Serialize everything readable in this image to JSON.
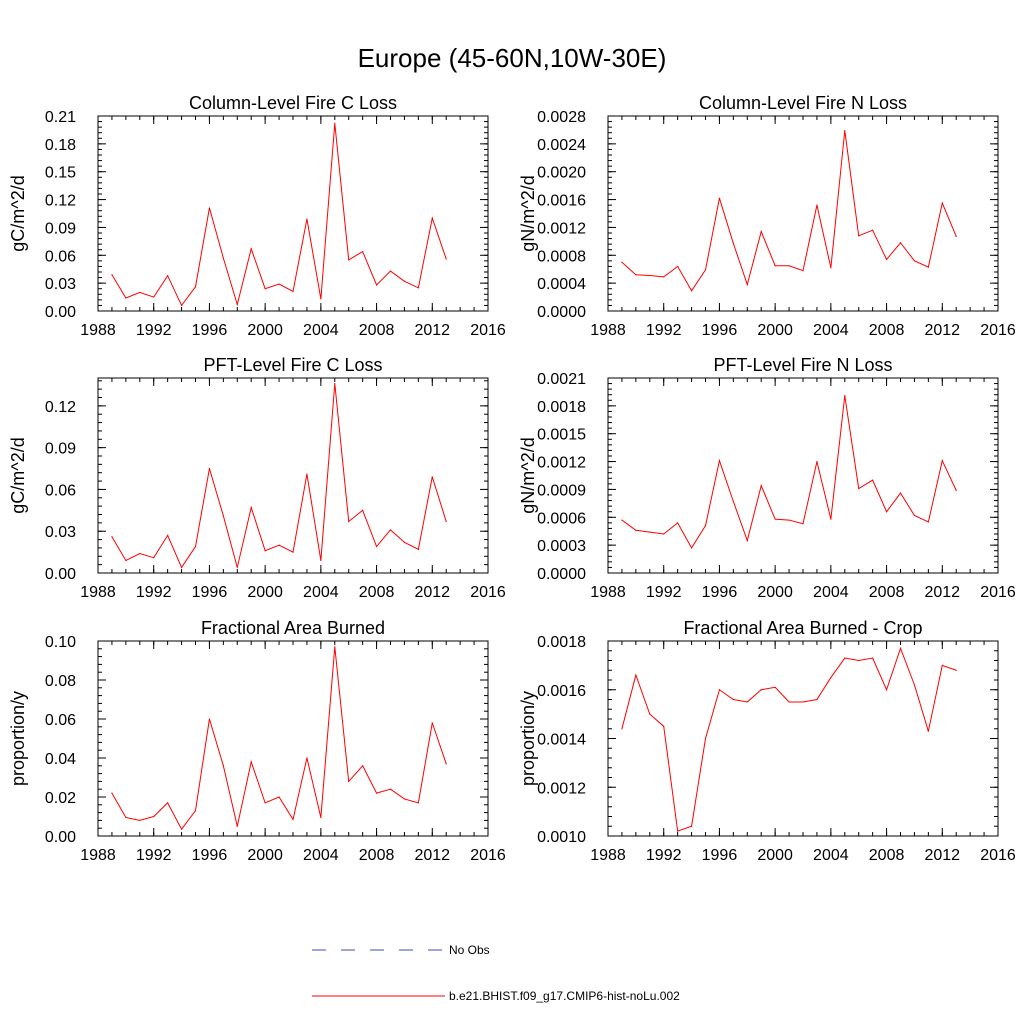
{
  "figure": {
    "title": "Europe (45-60N,10W-30E)"
  },
  "legend": {
    "obs_label": "No Obs",
    "model_label": "b.e21.BHIST.f09_g17.CMIP6-hist-noLu.002",
    "obs_color": "#3b4bb5",
    "model_color": "#ff0000"
  },
  "chart_data": [
    {
      "type": "line",
      "title": "Column-Level Fire C Loss",
      "xlabel": "",
      "ylabel": "gC/m^2/d",
      "xlim": [
        1988,
        2016
      ],
      "ylim": [
        0,
        0.21
      ],
      "xticks": [
        "1988",
        "1992",
        "1996",
        "2000",
        "2004",
        "2008",
        "2012",
        "2016"
      ],
      "yticks": [
        "0.00",
        "0.03",
        "0.06",
        "0.09",
        "0.12",
        "0.15",
        "0.18",
        "0.21"
      ],
      "series": [
        {
          "name": "b.e21.BHIST.f09_g17.CMIP6-hist-noLu.002",
          "color": "#ff0000",
          "x": [
            1989,
            1990,
            1991,
            1992,
            1993,
            1994,
            1995,
            1996,
            1997,
            1998,
            1999,
            2000,
            2001,
            2002,
            2003,
            2004,
            2005,
            2006,
            2007,
            2008,
            2009,
            2010,
            2011,
            2012,
            2013
          ],
          "y": [
            0.039,
            0.014,
            0.02,
            0.015,
            0.038,
            0.006,
            0.026,
            0.111,
            0.057,
            0.007,
            0.067,
            0.024,
            0.029,
            0.021,
            0.099,
            0.013,
            0.202,
            0.055,
            0.064,
            0.028,
            0.043,
            0.032,
            0.025,
            0.1,
            0.056
          ]
        }
      ]
    },
    {
      "type": "line",
      "title": "Column-Level Fire N Loss",
      "xlabel": "",
      "ylabel": "gN/m^2/d",
      "xlim": [
        1988,
        2016
      ],
      "ylim": [
        0,
        0.0028
      ],
      "xticks": [
        "1988",
        "1992",
        "1996",
        "2000",
        "2004",
        "2008",
        "2012",
        "2016"
      ],
      "yticks": [
        "0.0000",
        "0.0004",
        "0.0008",
        "0.0012",
        "0.0016",
        "0.0020",
        "0.0024",
        "0.0028"
      ],
      "series": [
        {
          "name": "b.e21.BHIST.f09_g17.CMIP6-hist-noLu.002",
          "color": "#ff0000",
          "x": [
            1989,
            1990,
            1991,
            1992,
            1993,
            1994,
            1995,
            1996,
            1997,
            1998,
            1999,
            2000,
            2001,
            2002,
            2003,
            2004,
            2005,
            2006,
            2007,
            2008,
            2009,
            2010,
            2011,
            2012,
            2013
          ],
          "y": [
            0.0007,
            0.00052,
            0.00051,
            0.00049,
            0.00064,
            0.00029,
            0.00059,
            0.00162,
            0.00097,
            0.00038,
            0.00114,
            0.00065,
            0.00065,
            0.00058,
            0.00152,
            0.00062,
            0.00259,
            0.00108,
            0.00116,
            0.00074,
            0.00098,
            0.00072,
            0.00063,
            0.00155,
            0.00107
          ]
        }
      ]
    },
    {
      "type": "line",
      "title": "PFT-Level Fire C Loss",
      "xlabel": "",
      "ylabel": "gC/m^2/d",
      "xlim": [
        1988,
        2016
      ],
      "ylim": [
        0,
        0.14
      ],
      "xticks": [
        "1988",
        "1992",
        "1996",
        "2000",
        "2004",
        "2008",
        "2012",
        "2016"
      ],
      "yticks": [
        "0.00",
        "0.03",
        "0.06",
        "0.09",
        "0.12"
      ],
      "series": [
        {
          "name": "b.e21.BHIST.f09_g17.CMIP6-hist-noLu.002",
          "color": "#ff0000",
          "x": [
            1989,
            1990,
            1991,
            1992,
            1993,
            1994,
            1995,
            1996,
            1997,
            1998,
            1999,
            2000,
            2001,
            2002,
            2003,
            2004,
            2005,
            2006,
            2007,
            2008,
            2009,
            2010,
            2011,
            2012,
            2013
          ],
          "y": [
            0.026,
            0.009,
            0.014,
            0.011,
            0.027,
            0.004,
            0.019,
            0.075,
            0.041,
            0.004,
            0.047,
            0.016,
            0.02,
            0.015,
            0.071,
            0.009,
            0.136,
            0.037,
            0.045,
            0.019,
            0.031,
            0.022,
            0.017,
            0.069,
            0.037
          ]
        }
      ]
    },
    {
      "type": "line",
      "title": "PFT-Level Fire N Loss",
      "xlabel": "",
      "ylabel": "gN/m^2/d",
      "xlim": [
        1988,
        2016
      ],
      "ylim": [
        0,
        0.0021
      ],
      "xticks": [
        "1988",
        "1992",
        "1996",
        "2000",
        "2004",
        "2008",
        "2012",
        "2016"
      ],
      "yticks": [
        "0.0000",
        "0.0003",
        "0.0006",
        "0.0009",
        "0.0012",
        "0.0015",
        "0.0018",
        "0.0021"
      ],
      "series": [
        {
          "name": "b.e21.BHIST.f09_g17.CMIP6-hist-noLu.002",
          "color": "#ff0000",
          "x": [
            1989,
            1990,
            1991,
            1992,
            1993,
            1994,
            1995,
            1996,
            1997,
            1998,
            1999,
            2000,
            2001,
            2002,
            2003,
            2004,
            2005,
            2006,
            2007,
            2008,
            2009,
            2010,
            2011,
            2012,
            2013
          ],
          "y": [
            0.00057,
            0.00046,
            0.00044,
            0.00042,
            0.00054,
            0.00027,
            0.00051,
            0.00121,
            0.00077,
            0.00035,
            0.00094,
            0.00058,
            0.00057,
            0.00053,
            0.0012,
            0.00058,
            0.00191,
            0.00091,
            0.001,
            0.00066,
            0.00086,
            0.00062,
            0.00055,
            0.00121,
            0.00089
          ]
        }
      ]
    },
    {
      "type": "line",
      "title": "Fractional Area Burned",
      "xlabel": "",
      "ylabel": "proportion/y",
      "xlim": [
        1988,
        2016
      ],
      "ylim": [
        0,
        0.1
      ],
      "xticks": [
        "1988",
        "1992",
        "1996",
        "2000",
        "2004",
        "2008",
        "2012",
        "2016"
      ],
      "yticks": [
        "0.00",
        "0.02",
        "0.04",
        "0.06",
        "0.08",
        "0.10"
      ],
      "series": [
        {
          "name": "b.e21.BHIST.f09_g17.CMIP6-hist-noLu.002",
          "color": "#ff0000",
          "x": [
            1989,
            1990,
            1991,
            1992,
            1993,
            1994,
            1995,
            1996,
            1997,
            1998,
            1999,
            2000,
            2001,
            2002,
            2003,
            2004,
            2005,
            2006,
            2007,
            2008,
            2009,
            2010,
            2011,
            2012,
            2013
          ],
          "y": [
            0.022,
            0.0095,
            0.008,
            0.01,
            0.017,
            0.0035,
            0.013,
            0.06,
            0.036,
            0.005,
            0.038,
            0.017,
            0.02,
            0.0085,
            0.04,
            0.0095,
            0.097,
            0.028,
            0.036,
            0.022,
            0.024,
            0.019,
            0.017,
            0.058,
            0.037
          ]
        }
      ]
    },
    {
      "type": "line",
      "title": "Fractional Area Burned - Crop",
      "xlabel": "",
      "ylabel": "proportion/y",
      "xlim": [
        1988,
        2016
      ],
      "ylim": [
        0.001,
        0.0018
      ],
      "xticks": [
        "1988",
        "1992",
        "1996",
        "2000",
        "2004",
        "2008",
        "2012",
        "2016"
      ],
      "yticks": [
        "0.0010",
        "0.0012",
        "0.0014",
        "0.0016",
        "0.0018"
      ],
      "series": [
        {
          "name": "b.e21.BHIST.f09_g17.CMIP6-hist-noLu.002",
          "color": "#ff0000",
          "x": [
            1989,
            1990,
            1991,
            1992,
            1993,
            1994,
            1995,
            1996,
            1997,
            1998,
            1999,
            2000,
            2001,
            2002,
            2003,
            2004,
            2005,
            2006,
            2007,
            2008,
            2009,
            2010,
            2011,
            2012,
            2013
          ],
          "y": [
            0.00144,
            0.00166,
            0.0015,
            0.00145,
            0.00102,
            0.00104,
            0.0014,
            0.0016,
            0.00156,
            0.00155,
            0.0016,
            0.00161,
            0.00155,
            0.00155,
            0.00156,
            0.00165,
            0.00173,
            0.00172,
            0.00173,
            0.0016,
            0.00177,
            0.00162,
            0.00143,
            0.0017,
            0.00168
          ]
        }
      ]
    }
  ]
}
